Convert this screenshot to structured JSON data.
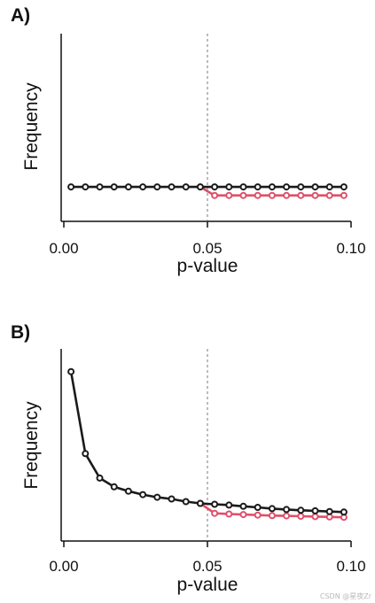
{
  "watermark": "CSDN @星夜Zr",
  "colors": {
    "black_series": "#1a1a1a",
    "red_series": "#e04f6a",
    "threshold": "#7a7a7a"
  },
  "chart_data": [
    {
      "panel_label": "A)",
      "type": "line",
      "xlabel": "p-value",
      "ylabel": "Frequency",
      "xlim": [
        -0.0035,
        0.1
      ],
      "ylim": [
        0,
        1
      ],
      "xticks": [
        0.0,
        0.05,
        0.1
      ],
      "xtick_labels": [
        "0.00",
        "0.05",
        "0.10"
      ],
      "threshold": 0.05,
      "x": [
        0.0025,
        0.0075,
        0.0125,
        0.0175,
        0.0225,
        0.0275,
        0.0325,
        0.0375,
        0.0425,
        0.0475,
        0.0525,
        0.0575,
        0.0625,
        0.0675,
        0.0725,
        0.0775,
        0.0825,
        0.0875,
        0.0925,
        0.0975
      ],
      "series": [
        {
          "color": "#e04f6a",
          "x": [
            0.0475,
            0.0525,
            0.0575,
            0.0625,
            0.0675,
            0.0725,
            0.0775,
            0.0825,
            0.0875,
            0.0925,
            0.0975
          ],
          "values": [
            0.14,
            0.09,
            0.09,
            0.09,
            0.09,
            0.09,
            0.09,
            0.09,
            0.09,
            0.09,
            0.09
          ]
        },
        {
          "color": "#1a1a1a",
          "values": [
            0.14,
            0.14,
            0.14,
            0.14,
            0.14,
            0.14,
            0.14,
            0.14,
            0.14,
            0.14,
            0.14,
            0.14,
            0.14,
            0.14,
            0.14,
            0.14,
            0.14,
            0.14,
            0.14,
            0.14
          ]
        }
      ]
    },
    {
      "panel_label": "B)",
      "type": "line",
      "xlabel": "p-value",
      "ylabel": "Frequency",
      "xlim": [
        -0.0035,
        0.1
      ],
      "ylim": [
        0,
        1
      ],
      "xticks": [
        0.0,
        0.05,
        0.1
      ],
      "xtick_labels": [
        "0.00",
        "0.05",
        "0.10"
      ],
      "threshold": 0.05,
      "x": [
        0.0025,
        0.0075,
        0.0125,
        0.0175,
        0.0225,
        0.0275,
        0.0325,
        0.0375,
        0.0425,
        0.0475,
        0.0525,
        0.0575,
        0.0625,
        0.0675,
        0.0725,
        0.0775,
        0.0825,
        0.0875,
        0.0925,
        0.0975
      ],
      "series": [
        {
          "color": "#e04f6a",
          "x": [
            0.0475,
            0.0525,
            0.0575,
            0.0625,
            0.0675,
            0.0725,
            0.0775,
            0.0825,
            0.0875,
            0.0925,
            0.0975
          ],
          "values": [
            0.155,
            0.098,
            0.094,
            0.091,
            0.088,
            0.085,
            0.083,
            0.081,
            0.079,
            0.077,
            0.075
          ]
        },
        {
          "color": "#1a1a1a",
          "values": [
            0.91,
            0.44,
            0.3,
            0.25,
            0.225,
            0.205,
            0.19,
            0.18,
            0.165,
            0.155,
            0.15,
            0.145,
            0.138,
            0.132,
            0.125,
            0.12,
            0.115,
            0.112,
            0.108,
            0.105
          ]
        }
      ]
    }
  ]
}
